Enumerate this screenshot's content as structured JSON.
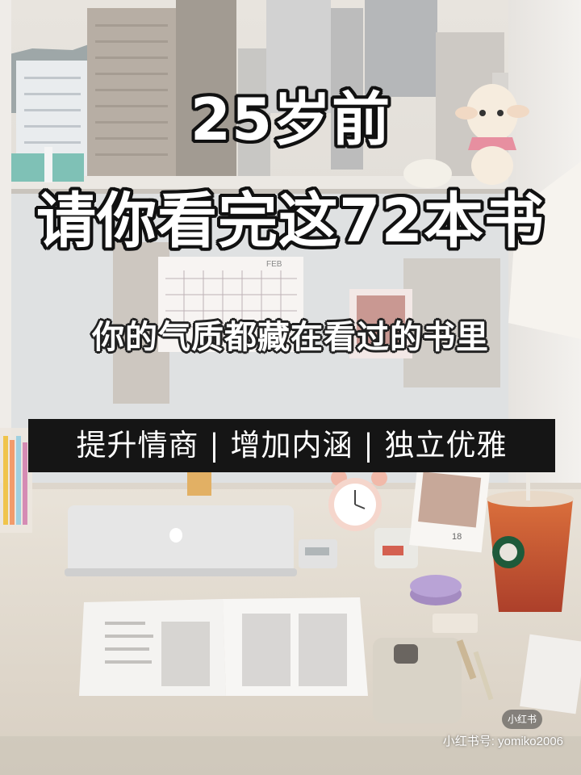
{
  "poster": {
    "title_line1": "25岁前",
    "title_line2": "请你看完这72本书",
    "subtitle": "你的气质都藏在看过的书里",
    "banner": "提升情商 | 增加内涵 | 独立优雅"
  },
  "photo": {
    "calendar_label": "FEB",
    "polaroid_number": "18"
  },
  "watermark": {
    "badge": "小红书",
    "account": "小红书号: yomiko2006"
  }
}
